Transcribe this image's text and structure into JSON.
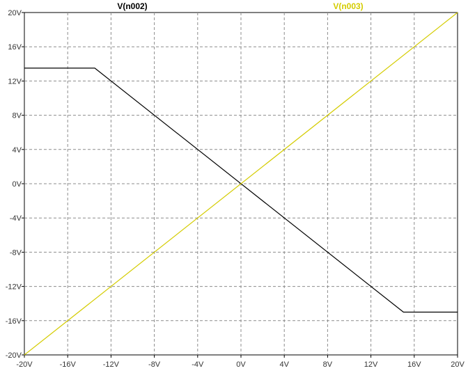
{
  "chart_data": {
    "type": "line",
    "x_ticks": [
      "-20V",
      "-16V",
      "-12V",
      "-8V",
      "-4V",
      "0V",
      "4V",
      "8V",
      "12V",
      "16V",
      "20V"
    ],
    "y_ticks": [
      "20V",
      "16V",
      "12V",
      "8V",
      "4V",
      "0V",
      "-4V",
      "-8V",
      "-12V",
      "-16V",
      "-20V"
    ],
    "xlim": [
      -20,
      20
    ],
    "ylim": [
      -20,
      20
    ],
    "grid": true,
    "legend_placement": "top",
    "series": [
      {
        "name": "V(n002)",
        "color": "#000000",
        "x": [
          -20,
          -13.5,
          15,
          20
        ],
        "y": [
          13.5,
          13.5,
          -15,
          -15
        ]
      },
      {
        "name": "V(n003)",
        "color": "#d4cc00",
        "x": [
          -20,
          20
        ],
        "y": [
          -20,
          20
        ]
      }
    ]
  }
}
